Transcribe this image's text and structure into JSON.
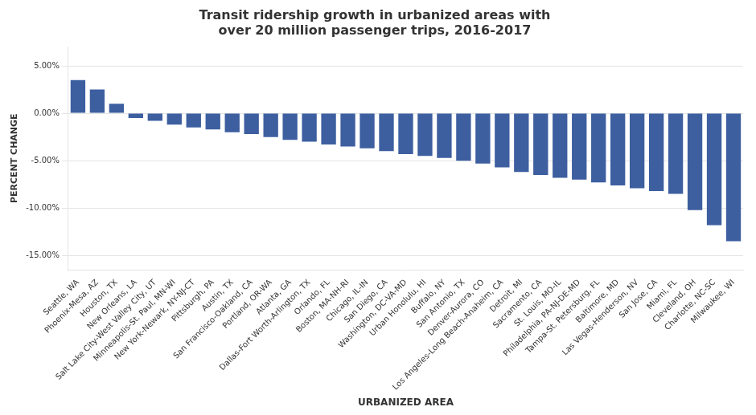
{
  "chart_data": {
    "type": "bar",
    "title": "Transit ridership growth in urbanized areas with\nover 20 million passenger trips, 2016-2017",
    "xlabel": "URBANIZED AREA",
    "ylabel": "PERCENT CHANGE",
    "color": "#3d5fa0",
    "categories": [
      "Seattle, WA",
      "Phoenix-Mesa, AZ",
      "Houston, TX",
      "New Orleans, LA",
      "Salt Lake City-West Valley City, UT",
      "Minneapolis-St. Paul, MN-WI",
      "New York-Newark, NY-NJ-CT",
      "Pittsburgh, PA",
      "Austin, TX",
      "San Francisco-Oakland, CA",
      "Portland, OR-WA",
      "Atlanta, GA",
      "Dallas-Fort Worth-Arlington, TX",
      "Orlando, FL",
      "Boston, MA-NH-RI",
      "Chicago, IL-IN",
      "San Diego, CA",
      "Washington, DC-VA-MD",
      "Urban Honolulu, HI",
      "Buffalo, NY",
      "San Antonio, TX",
      "Denver-Aurora, CO",
      "Los Angeles-Long Beach-Anaheim, CA",
      "Detroit, MI",
      "Sacramento, CA",
      "St. Louis, MO-IL",
      "Philadelphia, PA-NJ-DE-MD",
      "Tampa-St. Petersburg, FL",
      "Baltimore, MD",
      "Las Vegas-Henderson, NV",
      "San Jose, CA",
      "Miami, FL",
      "Cleveland, OH",
      "Charlotte, NC-SC",
      "Milwaukee, WI"
    ],
    "values": [
      3.5,
      2.5,
      1.0,
      -0.5,
      -0.8,
      -1.2,
      -1.5,
      -1.7,
      -2.0,
      -2.2,
      -2.5,
      -2.8,
      -3.0,
      -3.3,
      -3.5,
      -3.7,
      -4.0,
      -4.3,
      -4.5,
      -4.7,
      -5.0,
      -5.3,
      -5.7,
      -6.2,
      -6.5,
      -6.8,
      -7.0,
      -7.3,
      -7.6,
      -7.9,
      -8.2,
      -8.5,
      -10.2,
      -11.8,
      -13.5
    ],
    "ylim": [
      -16.5,
      7.0
    ],
    "yticks": [
      {
        "value": 5.0,
        "label": "5.00%"
      },
      {
        "value": 0.0,
        "label": "0.00%"
      },
      {
        "value": -5.0,
        "label": "-5.00%"
      },
      {
        "value": -10.0,
        "label": "-10.00%"
      },
      {
        "value": -15.0,
        "label": "-15.00%"
      }
    ],
    "grid": "y"
  }
}
